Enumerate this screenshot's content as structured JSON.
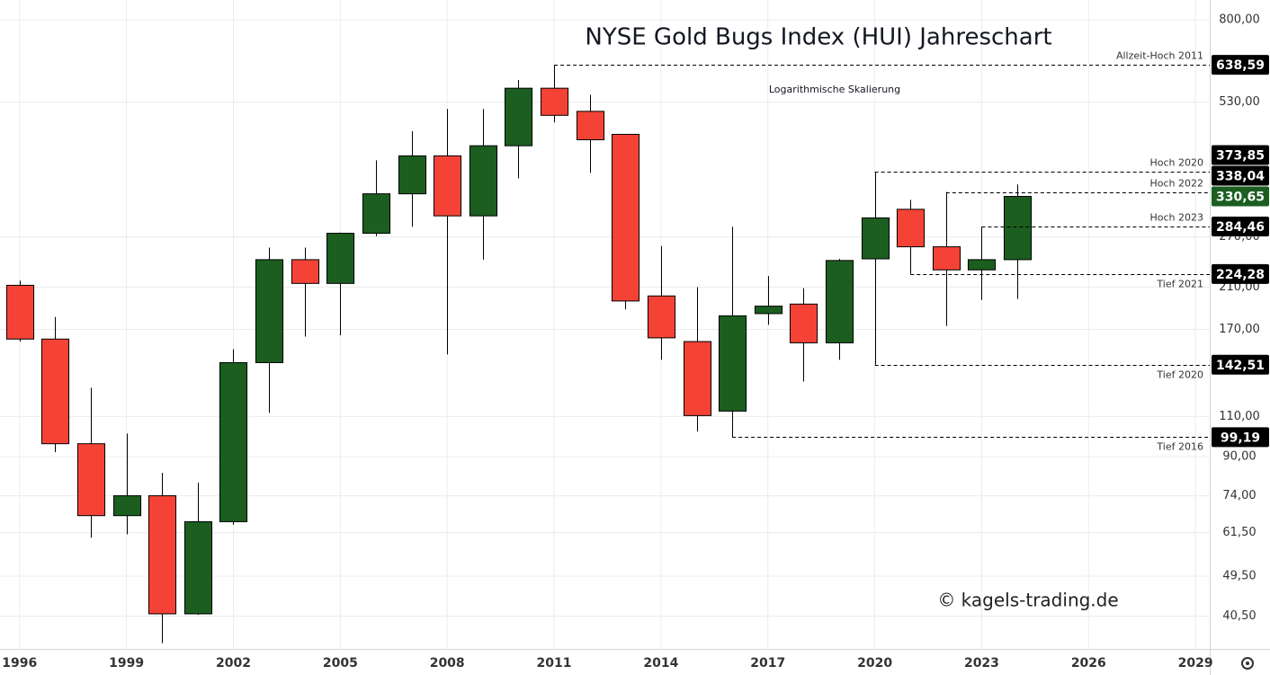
{
  "chart_data": {
    "type": "candlestick",
    "title": "NYSE Gold Bugs Index (HUI) Jahreschart",
    "subtitle": "Logarithmische Skalierung",
    "watermark": "© kagels-trading.de",
    "log_scale": true,
    "grid": true,
    "up_color": "#1b5e20",
    "down_color": "#f44336",
    "x": [
      1996,
      1997,
      1998,
      1999,
      2000,
      2001,
      2002,
      2003,
      2004,
      2005,
      2006,
      2007,
      2008,
      2009,
      2010,
      2011,
      2012,
      2013,
      2014,
      2015,
      2016,
      2017,
      2018,
      2019,
      2020,
      2021,
      2022,
      2023,
      2024
    ],
    "open": [
      212,
      162,
      96,
      67,
      74,
      41,
      65,
      144,
      241,
      214,
      275,
      335,
      405,
      300,
      426,
      568,
      506,
      451,
      201,
      160,
      113,
      184,
      193,
      159,
      242,
      310,
      257,
      229,
      241
    ],
    "high": [
      217,
      181,
      127,
      101,
      83,
      79,
      154,
      256,
      256,
      276,
      396,
      458,
      512,
      512,
      592,
      638.59,
      550,
      452,
      258,
      210,
      284,
      222,
      209,
      242,
      373.85,
      325,
      338.04,
      284.46,
      351
    ],
    "low": [
      160,
      92,
      60,
      61,
      35.4,
      40.8,
      64,
      112,
      164,
      165,
      271,
      284,
      150,
      241,
      362,
      479,
      372,
      188,
      146,
      102,
      99.19,
      174,
      131,
      146,
      142.51,
      224.28,
      173,
      197,
      198
    ],
    "close": [
      162,
      96,
      67,
      74,
      41,
      65,
      144,
      241,
      214,
      275,
      335,
      405,
      300,
      426,
      568,
      496,
      439,
      196,
      163,
      110.5,
      182,
      191,
      159,
      240,
      297,
      257,
      229,
      241,
      330.65
    ],
    "xlim": [
      1995.45,
      2029.4
    ],
    "xticks": [
      1996,
      1999,
      2002,
      2005,
      2008,
      2011,
      2014,
      2017,
      2020,
      2023,
      2026,
      2029
    ],
    "ylim": [
      34.4,
      883
    ],
    "yticks": [
      {
        "value": 800,
        "label": "800,00"
      },
      {
        "value": 530,
        "label": "530,00"
      },
      {
        "value": 270,
        "label": "270,00"
      },
      {
        "value": 210,
        "label": "210,00"
      },
      {
        "value": 170,
        "label": "170,00"
      },
      {
        "value": 110,
        "label": "110,00"
      },
      {
        "value": 90,
        "label": "90,00"
      },
      {
        "value": 74,
        "label": "74,00"
      },
      {
        "value": 61.5,
        "label": "61,50"
      },
      {
        "value": 49.5,
        "label": "49,50"
      },
      {
        "value": 40.5,
        "label": "40,50"
      }
    ],
    "annotations": [
      {
        "text": "Allzeit-Hoch 2011",
        "x": 2011,
        "value": 638.59,
        "value_label": "638,59"
      },
      {
        "text": "Hoch 2020",
        "x": 2020,
        "value": 373.85,
        "value_label": "373,85"
      },
      {
        "text": "Hoch 2022",
        "x": 2022,
        "value": 338.04,
        "value_label": "338,04"
      },
      {
        "text": "Hoch 2023",
        "x": 2023,
        "value": 284.46,
        "value_label": "284,46"
      },
      {
        "text": "Tief 2021",
        "x": 2021,
        "value": 224.28,
        "value_label": "224,28"
      },
      {
        "text": "Tief 2020",
        "x": 2020,
        "value": 142.51,
        "value_label": "142,51"
      },
      {
        "text": "Tief 2016",
        "x": 2016,
        "value": 99.19,
        "value_label": "99,19"
      }
    ],
    "last_price": {
      "value": 330.65,
      "label": "330,65"
    }
  }
}
